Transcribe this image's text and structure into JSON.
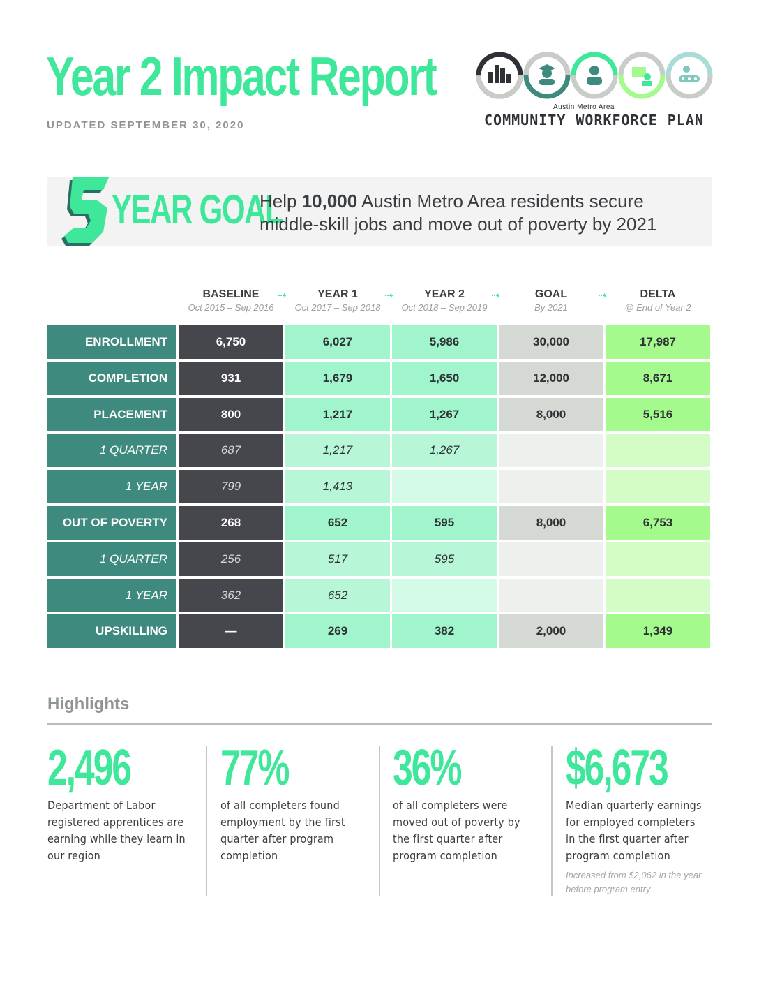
{
  "header": {
    "title": "Year 2 Impact Report",
    "updated": "UPDATED SEPTEMBER 30, 2020"
  },
  "logo": {
    "sub": "Austin Metro Area",
    "word1": "COMMUNITY",
    "word2": "WORKFORCE",
    "word3": "PLAN",
    "icons": [
      "skyline-icon",
      "graduate-icon",
      "worker-icon",
      "computer-user-icon",
      "assembly-line-icon"
    ],
    "colors": [
      "#2e3136",
      "#3f8a7e",
      "#3ee79a",
      "#a5fa8e",
      "#a9dcd6"
    ]
  },
  "goal": {
    "number": "5",
    "label": "YEAR GOAL",
    "text_before": "Help ",
    "text_bold": "10,000",
    "text_after": " Austin Metro Area residents secure middle-skill jobs and move out of poverty by 2021"
  },
  "table": {
    "columns": [
      {
        "header": "BASELINE",
        "sub": "Oct 2015 – Sep 2016"
      },
      {
        "header": "YEAR 1",
        "sub": "Oct 2017 – Sep 2018"
      },
      {
        "header": "YEAR 2",
        "sub": "Oct 2018 – Sep 2019"
      },
      {
        "header": "GOAL",
        "sub": "By 2021"
      },
      {
        "header": "DELTA",
        "sub": "@ End of Year 2"
      }
    ],
    "rows": [
      {
        "label": "ENROLLMENT",
        "sub": false,
        "baseline": "6,750",
        "year1": "6,027",
        "year2": "5,986",
        "goal": "30,000",
        "delta": "17,987"
      },
      {
        "label": "COMPLETION",
        "sub": false,
        "baseline": "931",
        "year1": "1,679",
        "year2": "1,650",
        "goal": "12,000",
        "delta": "8,671"
      },
      {
        "label": "PLACEMENT",
        "sub": false,
        "baseline": "800",
        "year1": "1,217",
        "year2": "1,267",
        "goal": "8,000",
        "delta": "5,516"
      },
      {
        "label": "1 QUARTER",
        "sub": true,
        "baseline": "687",
        "year1": "1,217",
        "year2": "1,267",
        "goal": "",
        "delta": ""
      },
      {
        "label": "1 YEAR",
        "sub": true,
        "baseline": "799",
        "year1": "1,413",
        "year2": "",
        "goal": "",
        "delta": ""
      },
      {
        "label": "OUT OF POVERTY",
        "sub": false,
        "baseline": "268",
        "year1": "652",
        "year2": "595",
        "goal": "8,000",
        "delta": "6,753"
      },
      {
        "label": "1 QUARTER",
        "sub": true,
        "baseline": "256",
        "year1": "517",
        "year2": "595",
        "goal": "",
        "delta": ""
      },
      {
        "label": "1 YEAR",
        "sub": true,
        "baseline": "362",
        "year1": "652",
        "year2": "",
        "goal": "",
        "delta": ""
      },
      {
        "label": "UPSKILLING",
        "sub": false,
        "baseline": "—",
        "year1": "269",
        "year2": "382",
        "goal": "2,000",
        "delta": "1,349"
      }
    ]
  },
  "highlights": {
    "title": "Highlights",
    "items": [
      {
        "big": "2,496",
        "desc": "Department of Labor registered apprentices are earning while they learn in our region",
        "note": ""
      },
      {
        "big": "77%",
        "desc": "of all completers found employment by the first quarter after program completion",
        "note": ""
      },
      {
        "big": "36%",
        "desc": "of all completers were moved out of poverty by the first quarter after program completion",
        "note": ""
      },
      {
        "big": "$6,673",
        "desc": "Median quarterly earnings for employed completers in the first quarter after program completion",
        "note": "Increased from $2,062 in the year before program entry"
      }
    ]
  }
}
